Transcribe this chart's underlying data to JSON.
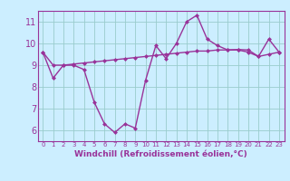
{
  "line1_x": [
    0,
    1,
    2,
    3,
    4,
    5,
    6,
    7,
    8,
    9,
    10,
    11,
    12,
    13,
    14,
    15,
    16,
    17,
    18,
    19,
    20,
    21,
    22,
    23
  ],
  "line1_y": [
    9.6,
    8.4,
    9.0,
    9.0,
    8.8,
    7.3,
    6.3,
    5.9,
    6.3,
    6.1,
    8.3,
    9.9,
    9.3,
    10.0,
    11.0,
    11.3,
    10.2,
    9.9,
    9.7,
    9.7,
    9.6,
    9.4,
    10.2,
    9.6
  ],
  "line2_x": [
    0,
    1,
    2,
    3,
    4,
    5,
    6,
    7,
    8,
    9,
    10,
    11,
    12,
    13,
    14,
    15,
    16,
    17,
    18,
    19,
    20,
    21,
    22,
    23
  ],
  "line2_y": [
    9.6,
    9.0,
    9.0,
    9.05,
    9.1,
    9.15,
    9.2,
    9.25,
    9.3,
    9.35,
    9.4,
    9.45,
    9.5,
    9.55,
    9.6,
    9.65,
    9.65,
    9.7,
    9.7,
    9.72,
    9.7,
    9.4,
    9.5,
    9.6
  ],
  "line_color": "#993399",
  "bg_color": "#cceeff",
  "grid_color": "#99cccc",
  "xlabel": "Windchill (Refroidissement éolien,°C)",
  "xlim": [
    -0.5,
    23.5
  ],
  "ylim": [
    5.5,
    11.5
  ],
  "yticks": [
    6,
    7,
    8,
    9,
    10,
    11
  ],
  "xticks": [
    0,
    1,
    2,
    3,
    4,
    5,
    6,
    7,
    8,
    9,
    10,
    11,
    12,
    13,
    14,
    15,
    16,
    17,
    18,
    19,
    20,
    21,
    22,
    23
  ],
  "marker": "D",
  "markersize": 2.5,
  "linewidth": 1.0,
  "xlabel_fontsize": 6.5,
  "ytick_fontsize": 7,
  "xtick_fontsize": 5
}
